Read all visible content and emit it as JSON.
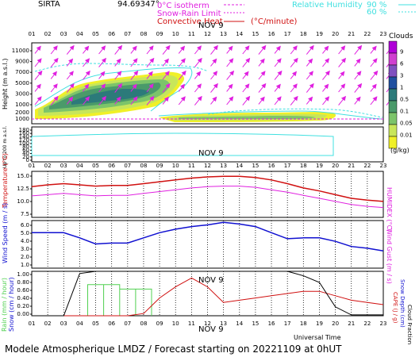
{
  "header": {
    "station": "SIRTA",
    "coords": "94.69347°",
    "legend_isotherm": "0°C isotherm",
    "legend_snow": "Snow-Rain Limit",
    "legend_convective": "Convective Heat",
    "legend_convective_unit": "(°C/minute)",
    "rh_label": "Relative Humidity",
    "rh_90": "90 %",
    "rh_60": "60 %",
    "date_label": "NOV  9",
    "hours": [
      "01",
      "02",
      "03",
      "04",
      "05",
      "06",
      "07",
      "08",
      "09",
      "10",
      "11",
      "12",
      "13",
      "14",
      "15",
      "16",
      "17",
      "18",
      "19",
      "20",
      "21",
      "22",
      "23"
    ]
  },
  "colors": {
    "magenta": "#e020e0",
    "cyan": "#40e0e0",
    "red": "#d01010",
    "blue": "#1010d0",
    "green": "#50d050",
    "black": "#000000"
  },
  "cloud_panel": {
    "ylabel": "Height  (m a.s.l.)",
    "ylabel_low": "Up to 200 m a.s.l.",
    "yticks_high": [
      "11000",
      "9000",
      "7000",
      "5000",
      "3000",
      "1000"
    ],
    "yticks_mid": [
      "2000",
      "1000"
    ],
    "yticks_low": [
      "180",
      "160",
      "140",
      "120",
      "100",
      "80",
      "60",
      "40",
      "20",
      "0"
    ],
    "scale_title": "Clouds",
    "scale_unit": "(g/kg)",
    "scale_labels": [
      "9",
      "6",
      "3",
      "1",
      "0.5",
      "0.1",
      "0.05",
      "0.01"
    ],
    "scale_colors": [
      "#b000d8",
      "#d040d0",
      "#8050c0",
      "#2050a0",
      "#2c7a7a",
      "#4a9a6a",
      "#7cc46a",
      "#c8e65a",
      "#f0f028"
    ]
  },
  "temp_panel": {
    "ylabel_left": "Temperature (°C)",
    "ylabel_right": "HUMIDEX (°C)",
    "yticks": [
      "15.0",
      "12.5",
      "10.0",
      "7.5"
    ]
  },
  "wind_panel": {
    "ylabel_left": "Wind Speed (m / s)",
    "ylabel_right": "Wind Gust (m / s)",
    "yticks": [
      "6.0",
      "5.0",
      "4.0",
      "3.0",
      "2.0",
      "1.0"
    ]
  },
  "precip_panel": {
    "ylabel_left1": "Rain (mm / hour)",
    "ylabel_left2": "Snow (cm / hour)",
    "ylabel_right1": "CAPE (J / g)",
    "ylabel_right2": "Snow Depth (cm)",
    "ylabel_right3": "Cloud Fraction",
    "yticks": [
      "1.00",
      "0.80",
      "0.60",
      "0.40",
      "0.20",
      "0.00"
    ],
    "universal_time": "Universal Time"
  },
  "footer": {
    "text": "Modele Atmospherique LMDZ / Forecast starting on 20221109 at 0hUT"
  },
  "chart_data": [
    {
      "type": "heatmap",
      "title": "Clouds (g/kg)",
      "x": [
        "01",
        "02",
        "03",
        "04",
        "05",
        "06",
        "07",
        "08",
        "09",
        "10",
        "11",
        "12",
        "13",
        "14",
        "15",
        "16",
        "17",
        "18",
        "19",
        "20",
        "21",
        "22",
        "23"
      ],
      "ylabel": "Height (m a.s.l.)",
      "ylim": [
        0,
        12000
      ],
      "note_cloud_layers": [
        {
          "from": "01",
          "to": "09",
          "base_m": 1500,
          "top_m": 6500,
          "max_gkg": 0.5
        },
        {
          "from": "09",
          "to": "20",
          "base_m": 1500,
          "top_m": 2500,
          "max_gkg": 0.1
        }
      ]
    },
    {
      "type": "line",
      "x": [
        "01",
        "02",
        "03",
        "04",
        "05",
        "06",
        "07",
        "08",
        "09",
        "10",
        "11",
        "12",
        "13",
        "14",
        "15",
        "16",
        "17",
        "18",
        "19",
        "20",
        "21",
        "22",
        "23"
      ],
      "ylabel": "Temperature (°C)",
      "ylim": [
        7.5,
        15.0
      ],
      "series": [
        {
          "name": "Temperature",
          "color": "#d01010",
          "values": [
            12.5,
            12.8,
            13.0,
            12.8,
            12.6,
            12.7,
            12.7,
            13.0,
            13.3,
            13.6,
            13.9,
            14.1,
            14.2,
            14.2,
            14.0,
            13.6,
            13.0,
            12.3,
            11.8,
            11.2,
            10.6,
            10.3,
            10.1
          ]
        },
        {
          "name": "HUMIDEX",
          "color": "#e020e0",
          "values": [
            11.0,
            11.2,
            11.4,
            11.2,
            11.0,
            11.1,
            11.1,
            11.4,
            11.7,
            12.0,
            12.3,
            12.5,
            12.6,
            12.6,
            12.4,
            12.0,
            11.6,
            11.1,
            10.6,
            10.1,
            9.6,
            9.3,
            9.1
          ]
        }
      ]
    },
    {
      "type": "line",
      "x": [
        "01",
        "02",
        "03",
        "04",
        "05",
        "06",
        "07",
        "08",
        "09",
        "10",
        "11",
        "12",
        "13",
        "14",
        "15",
        "16",
        "17",
        "18",
        "19",
        "20",
        "21",
        "22",
        "23"
      ],
      "ylabel": "Wind Speed (m / s)",
      "ylim": [
        0.5,
        6.0
      ],
      "series": [
        {
          "name": "Wind Speed",
          "color": "#1010d0",
          "values": [
            4.6,
            4.6,
            4.6,
            4.0,
            3.3,
            3.4,
            3.4,
            4.0,
            4.6,
            5.0,
            5.3,
            5.5,
            5.8,
            5.6,
            5.3,
            4.6,
            3.9,
            4.0,
            4.0,
            3.6,
            3.0,
            2.8,
            2.5
          ]
        }
      ]
    },
    {
      "type": "line",
      "x": [
        "01",
        "02",
        "03",
        "04",
        "05",
        "06",
        "07",
        "08",
        "09",
        "10",
        "11",
        "12",
        "13",
        "14",
        "15",
        "16",
        "17",
        "18",
        "19",
        "20",
        "21",
        "22",
        "23"
      ],
      "ylim": [
        0,
        1.0
      ],
      "series": [
        {
          "name": "Rain",
          "color": "#50d050",
          "values": [
            0,
            0,
            0,
            0,
            0.7,
            0.7,
            0.6,
            0.6,
            0,
            0,
            0,
            0,
            0,
            0,
            0,
            0,
            0,
            0,
            0,
            0,
            0,
            0,
            0
          ]
        },
        {
          "name": "CAPE",
          "color": "#d01010",
          "values": [
            0,
            0,
            0,
            0,
            0,
            0,
            0,
            0.05,
            0.4,
            0.65,
            0.85,
            0.65,
            0.3,
            0.35,
            0.4,
            0.45,
            0.5,
            0.55,
            0.55,
            0.45,
            0.35,
            0.3,
            0.25
          ]
        },
        {
          "name": "Cloud Fraction",
          "color": "#000000",
          "values": [
            0,
            0,
            0,
            0.95,
            1.0,
            1.0,
            1.0,
            1.0,
            1.0,
            1.0,
            1.0,
            1.0,
            1.0,
            1.0,
            1.0,
            1.0,
            1.0,
            0.9,
            0.75,
            0.2,
            0.02,
            0.02,
            0.02
          ]
        }
      ]
    }
  ]
}
